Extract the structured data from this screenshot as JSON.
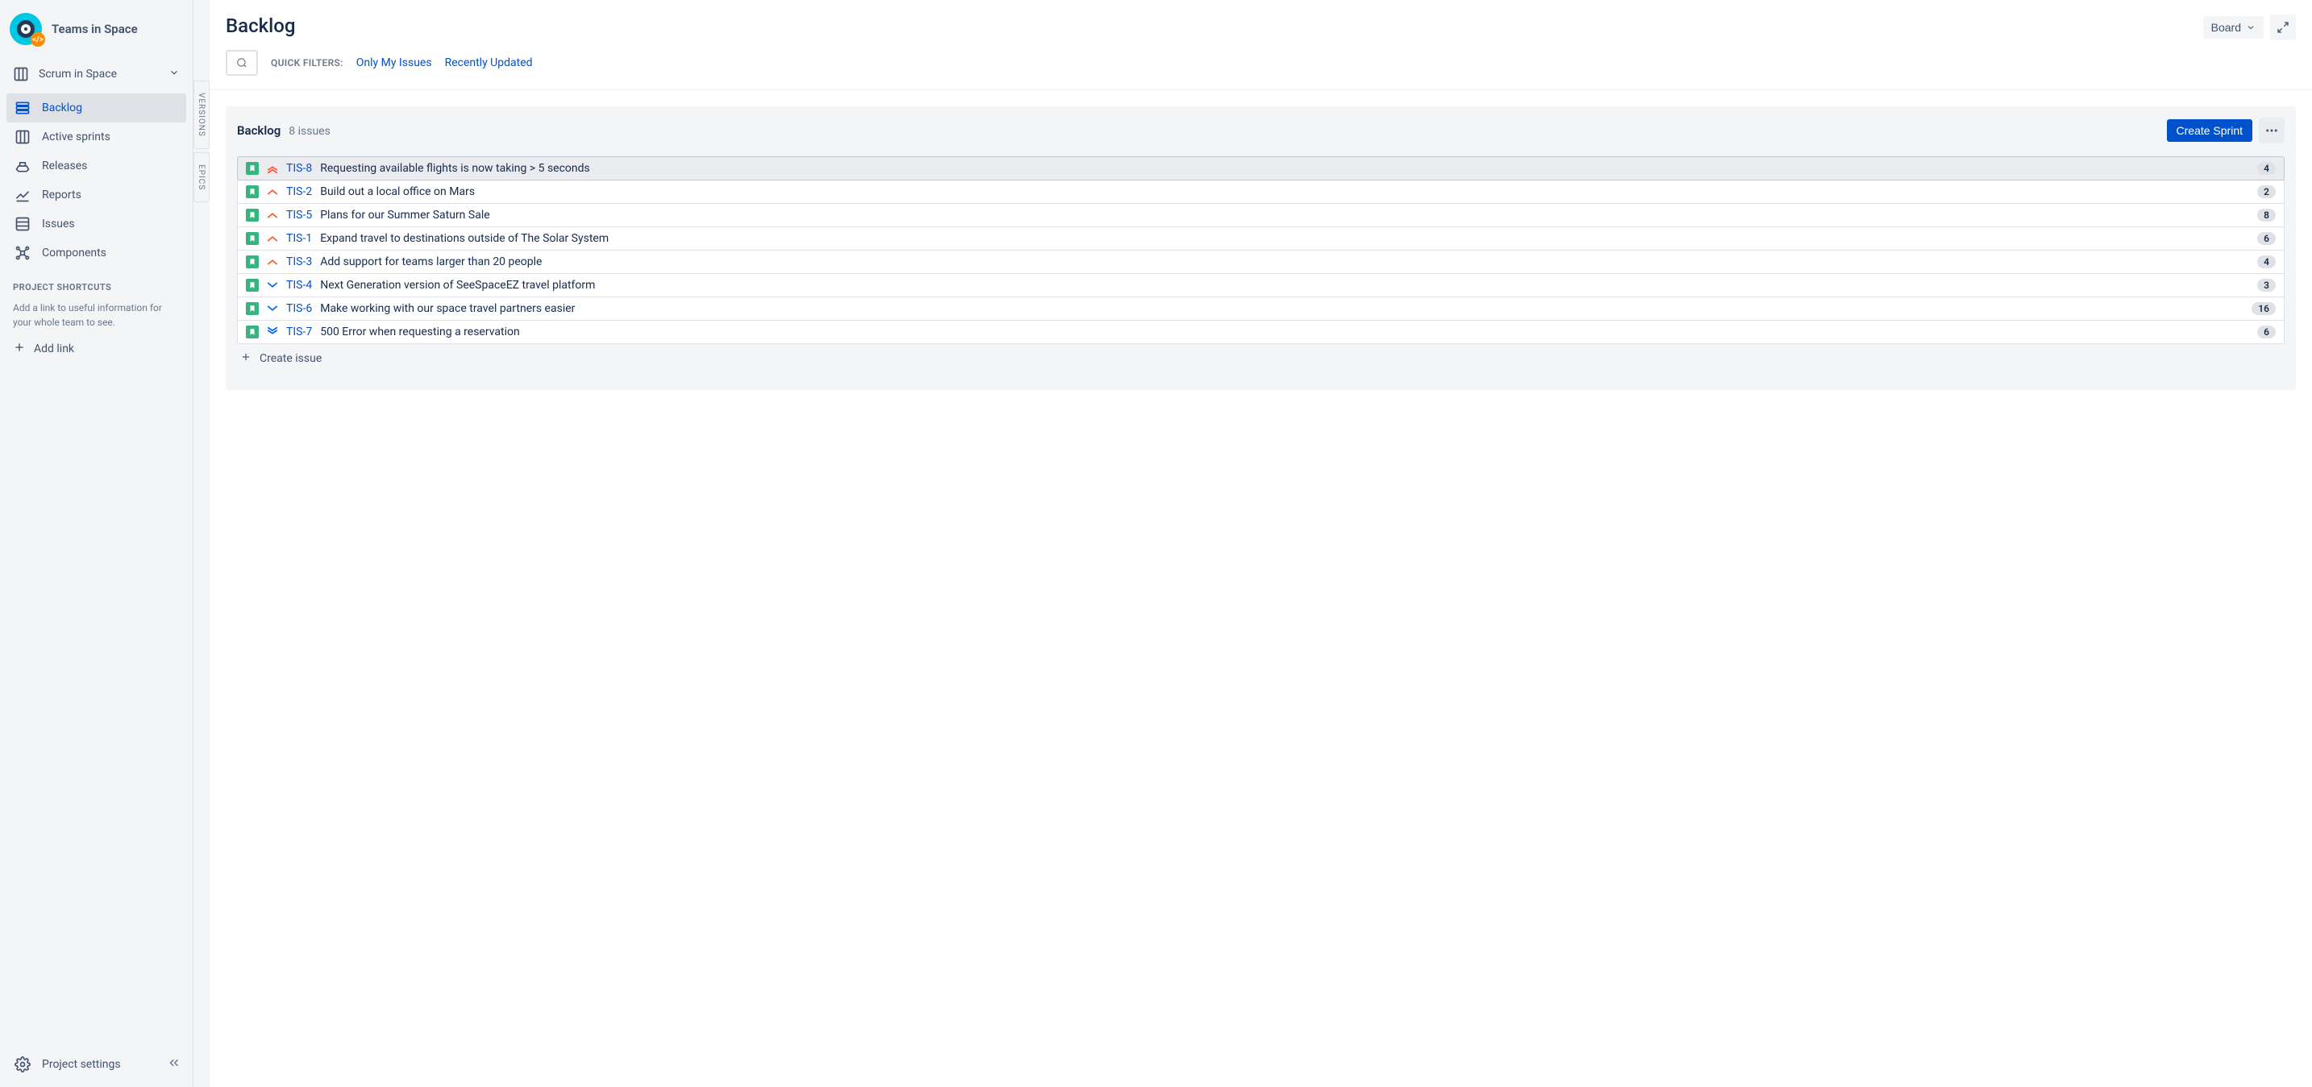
{
  "project": {
    "name": "Teams in Space"
  },
  "board_selector": {
    "label": "Scrum in Space"
  },
  "sidebar": {
    "nav": [
      {
        "label": "Backlog",
        "icon": "backlog",
        "active": true
      },
      {
        "label": "Active sprints",
        "icon": "board",
        "active": false
      },
      {
        "label": "Releases",
        "icon": "ship",
        "active": false
      },
      {
        "label": "Reports",
        "icon": "graph",
        "active": false
      },
      {
        "label": "Issues",
        "icon": "list",
        "active": false
      },
      {
        "label": "Components",
        "icon": "component",
        "active": false
      }
    ],
    "shortcuts_header": "PROJECT SHORTCUTS",
    "shortcuts_desc": "Add a link to useful information for your whole team to see.",
    "add_link_label": "Add link",
    "settings_label": "Project settings"
  },
  "vertical_tabs": {
    "versions": "VERSIONS",
    "epics": "EPICS"
  },
  "header": {
    "title": "Backlog",
    "board_btn": "Board"
  },
  "filters": {
    "label": "QUICK FILTERS:",
    "items": [
      "Only My Issues",
      "Recently Updated"
    ]
  },
  "backlog": {
    "title": "Backlog",
    "count_label": "8 issues",
    "create_sprint": "Create Sprint",
    "create_issue": "Create issue",
    "issues": [
      {
        "key": "TIS-8",
        "summary": "Requesting available flights is now taking > 5 seconds",
        "priority": "highest",
        "estimate": "4",
        "selected": true
      },
      {
        "key": "TIS-2",
        "summary": "Build out a local office on Mars",
        "priority": "high",
        "estimate": "2",
        "selected": false
      },
      {
        "key": "TIS-5",
        "summary": "Plans for our Summer Saturn Sale",
        "priority": "high",
        "estimate": "8",
        "selected": false
      },
      {
        "key": "TIS-1",
        "summary": "Expand travel to destinations outside of The Solar System",
        "priority": "high",
        "estimate": "6",
        "selected": false
      },
      {
        "key": "TIS-3",
        "summary": "Add support for teams larger than 20 people",
        "priority": "high",
        "estimate": "4",
        "selected": false
      },
      {
        "key": "TIS-4",
        "summary": "Next Generation version of SeeSpaceEZ travel platform",
        "priority": "low",
        "estimate": "3",
        "selected": false
      },
      {
        "key": "TIS-6",
        "summary": "Make working with our space travel partners easier",
        "priority": "low",
        "estimate": "16",
        "selected": false
      },
      {
        "key": "TIS-7",
        "summary": "500 Error when requesting a reservation",
        "priority": "lowest",
        "estimate": "6",
        "selected": false
      }
    ]
  },
  "colors": {
    "primary": "#0052cc",
    "story_green": "#36b37e",
    "priority_high": "#ff5630",
    "priority_low": "#0065ff"
  }
}
